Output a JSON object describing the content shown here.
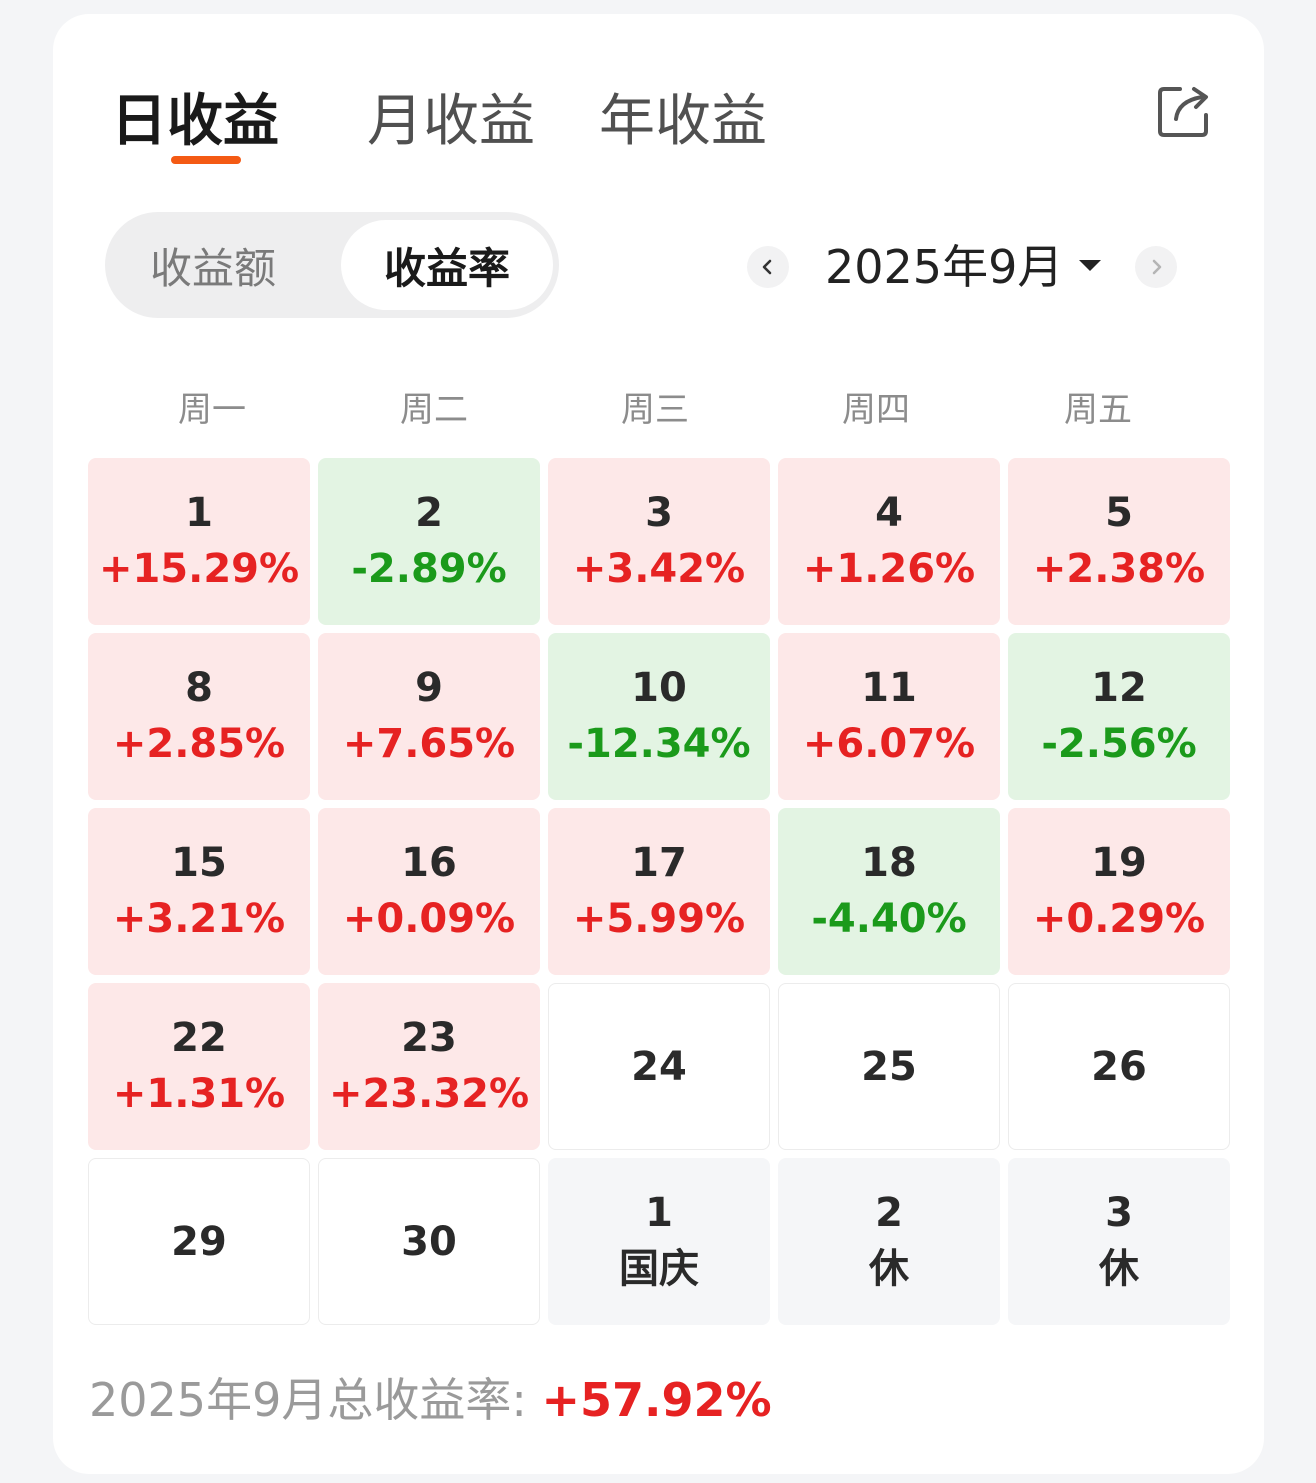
{
  "tabs": [
    {
      "label": "日收益",
      "active": true
    },
    {
      "label": "月收益",
      "active": false
    },
    {
      "label": "年收益",
      "active": false
    }
  ],
  "share_icon": "share-icon",
  "segment": {
    "options": [
      "收益额",
      "收益率"
    ],
    "selected": "收益率"
  },
  "month_picker": {
    "label": "2025年9月",
    "prev_icon": "chevron-left-icon",
    "next_icon": "chevron-right-icon",
    "dropdown_icon": "caret-down-icon"
  },
  "weekdays": [
    "周一",
    "周二",
    "周三",
    "周四",
    "周五"
  ],
  "colors": {
    "positive": "#e62222",
    "negative": "#1b9a1b",
    "accent": "#f45a14",
    "positive_bg": "#fde8e8",
    "negative_bg": "#e3f4e3"
  },
  "days": [
    {
      "day": "1",
      "value": "+15.29%",
      "state": "pos"
    },
    {
      "day": "2",
      "value": "-2.89%",
      "state": "neg"
    },
    {
      "day": "3",
      "value": "+3.42%",
      "state": "pos"
    },
    {
      "day": "4",
      "value": "+1.26%",
      "state": "pos"
    },
    {
      "day": "5",
      "value": "+2.38%",
      "state": "pos"
    },
    {
      "day": "8",
      "value": "+2.85%",
      "state": "pos"
    },
    {
      "day": "9",
      "value": "+7.65%",
      "state": "pos"
    },
    {
      "day": "10",
      "value": "-12.34%",
      "state": "neg"
    },
    {
      "day": "11",
      "value": "+6.07%",
      "state": "pos"
    },
    {
      "day": "12",
      "value": "-2.56%",
      "state": "neg"
    },
    {
      "day": "15",
      "value": "+3.21%",
      "state": "pos"
    },
    {
      "day": "16",
      "value": "+0.09%",
      "state": "pos"
    },
    {
      "day": "17",
      "value": "+5.99%",
      "state": "pos"
    },
    {
      "day": "18",
      "value": "-4.40%",
      "state": "neg"
    },
    {
      "day": "19",
      "value": "+0.29%",
      "state": "pos"
    },
    {
      "day": "22",
      "value": "+1.31%",
      "state": "pos"
    },
    {
      "day": "23",
      "value": "+23.32%",
      "state": "pos"
    },
    {
      "day": "24",
      "value": "",
      "state": "empty"
    },
    {
      "day": "25",
      "value": "",
      "state": "empty"
    },
    {
      "day": "26",
      "value": "",
      "state": "empty"
    },
    {
      "day": "29",
      "value": "",
      "state": "empty"
    },
    {
      "day": "30",
      "value": "",
      "state": "empty"
    },
    {
      "day": "1",
      "value": "国庆",
      "state": "next"
    },
    {
      "day": "2",
      "value": "休",
      "state": "next"
    },
    {
      "day": "3",
      "value": "休",
      "state": "next"
    }
  ],
  "footer": {
    "label": "2025年9月总收益率: ",
    "total": "+57.92%"
  }
}
